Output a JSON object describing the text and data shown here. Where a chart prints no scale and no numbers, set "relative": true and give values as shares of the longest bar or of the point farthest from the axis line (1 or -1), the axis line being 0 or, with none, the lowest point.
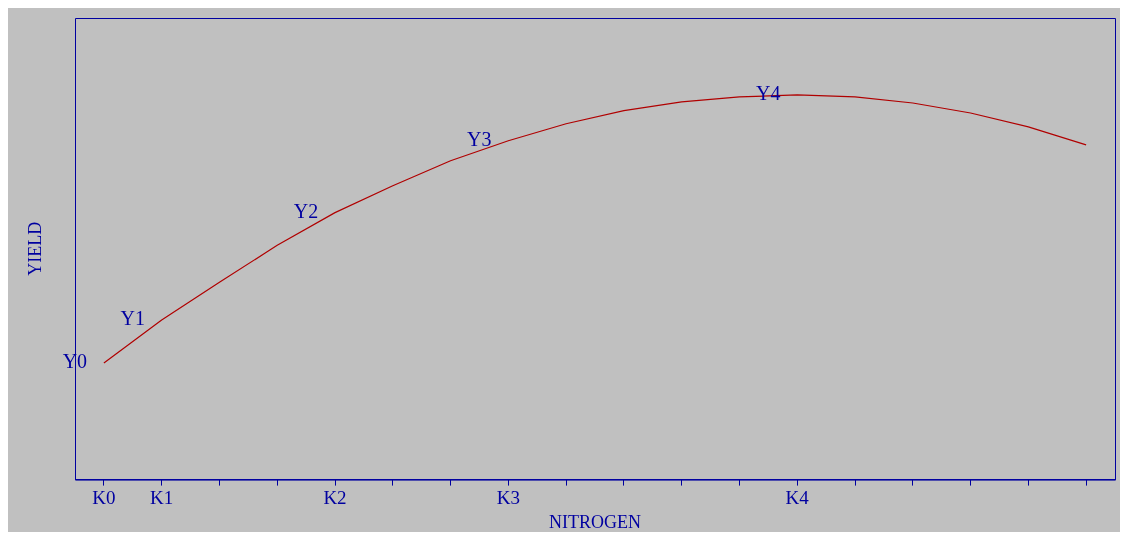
{
  "chart_data": {
    "type": "line",
    "relative": true,
    "xlabel": "NITROGEN",
    "ylabel": "YIELD",
    "categories": [
      "K0",
      "K1",
      null,
      null,
      "K2",
      null,
      null,
      "K3",
      null,
      null,
      null,
      null,
      "K4",
      null,
      null,
      null,
      null,
      null
    ],
    "series": [
      {
        "color": "#b00000",
        "values": [
          0.303,
          0.415,
          0.513,
          0.609,
          0.694,
          0.764,
          0.829,
          0.881,
          0.925,
          0.959,
          0.982,
          0.995,
          1,
          0.995,
          0.979,
          0.953,
          0.917,
          0.87
        ]
      }
    ],
    "annotations": [
      {
        "text": "Y0",
        "x": "K0",
        "y": 0.303
      },
      {
        "text": "Y1",
        "x": "K1",
        "y": 0.415
      },
      {
        "text": "Y2",
        "x": "K2",
        "y": 0.694
      },
      {
        "text": "Y3",
        "x": "K3",
        "y": 0.881
      },
      {
        "text": "Y4",
        "x": "K4",
        "y": 1
      }
    ],
    "grid": false,
    "legend": false,
    "marker": "none",
    "line_style": "solid"
  }
}
